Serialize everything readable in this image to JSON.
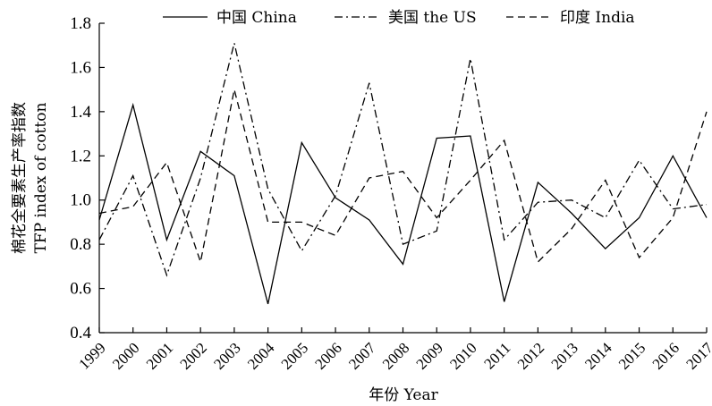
{
  "chart_data": {
    "type": "line",
    "x": [
      "1999",
      "2000",
      "2001",
      "2002",
      "2003",
      "2004",
      "2005",
      "2006",
      "2007",
      "2008",
      "2009",
      "2010",
      "2011",
      "2012",
      "2013",
      "2014",
      "2015",
      "2016",
      "2017"
    ],
    "ylabel_lines": [
      "棉花全要素生产率指数",
      "TFP index of cotton"
    ],
    "xlabel": "年份 Year",
    "ylim": [
      0.4,
      1.8
    ],
    "yticks": [
      "0.4",
      "0.6",
      "0.8",
      "1.0",
      "1.2",
      "1.4",
      "1.6",
      "1.8"
    ],
    "legend_position": "top",
    "grid": false,
    "series": [
      {
        "name": "中国 China",
        "dash": "solid",
        "values": [
          0.91,
          1.43,
          0.82,
          1.22,
          1.11,
          0.53,
          1.26,
          1.01,
          0.91,
          0.71,
          1.28,
          1.29,
          0.54,
          1.08,
          0.94,
          0.78,
          0.92,
          1.2,
          0.92
        ]
      },
      {
        "name": "美国 the US",
        "dash": "dashdot",
        "values": [
          0.82,
          1.11,
          0.66,
          1.1,
          1.71,
          1.05,
          0.77,
          1.02,
          1.53,
          0.8,
          0.86,
          1.64,
          0.82,
          0.99,
          1.0,
          0.92,
          1.18,
          0.96,
          0.98
        ]
      },
      {
        "name": "印度 India",
        "dash": "dashed",
        "values": [
          0.94,
          0.97,
          1.17,
          0.72,
          1.5,
          0.9,
          0.9,
          0.84,
          1.1,
          1.13,
          0.92,
          1.09,
          1.27,
          0.72,
          0.87,
          1.09,
          0.74,
          0.92,
          1.4
        ]
      }
    ]
  }
}
